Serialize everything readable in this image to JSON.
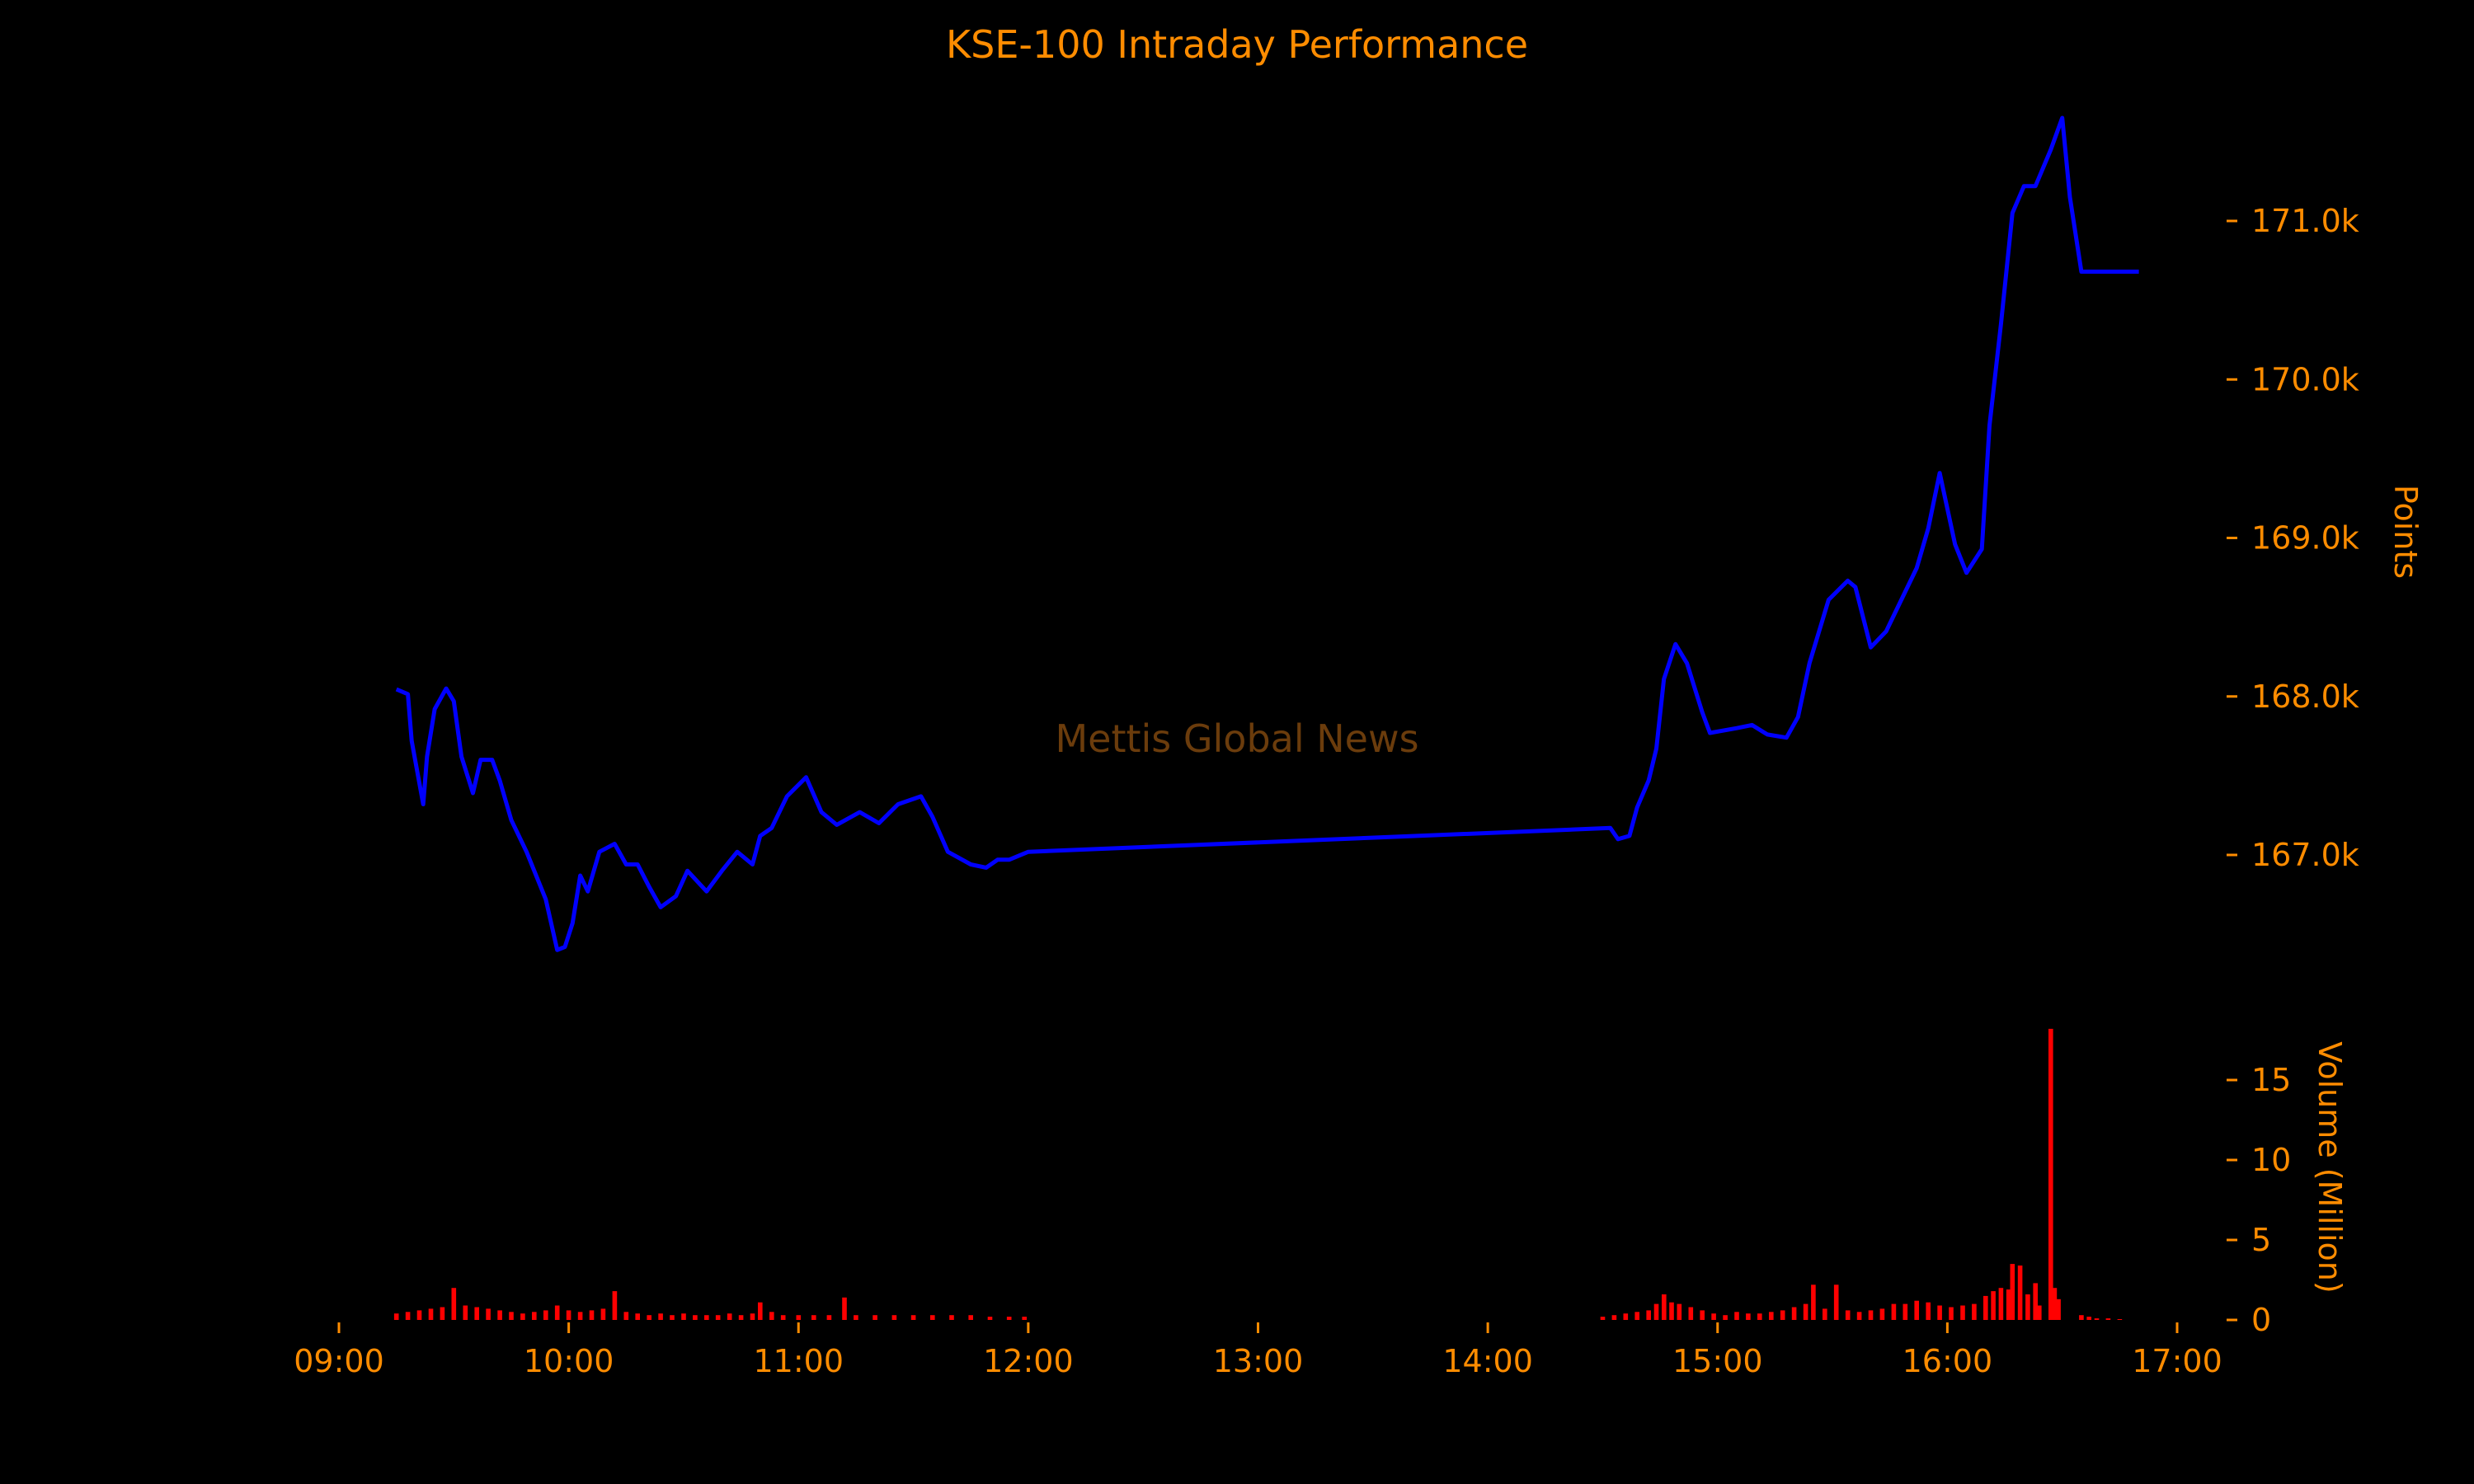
{
  "chart_data": {
    "type": "line",
    "title": "KSE-100 Intraday Performance",
    "watermark": "Mettis Global News",
    "xlabel": "",
    "x_ticks": [
      "09:00",
      "10:00",
      "11:00",
      "12:00",
      "13:00",
      "14:00",
      "15:00",
      "16:00",
      "17:00"
    ],
    "xlim": [
      "09:00",
      "17:00"
    ],
    "colors": {
      "background": "#000000",
      "text": "#ff8c00",
      "line": "#0000ff",
      "volume": "#ff0000",
      "watermark": "#6b3c0c"
    },
    "price": {
      "ylabel": "Points",
      "y_ticks": [
        {
          "value": 167000,
          "label": "167.0k"
        },
        {
          "value": 168000,
          "label": "168.0k"
        },
        {
          "value": 169000,
          "label": "169.0k"
        },
        {
          "value": 170000,
          "label": "170.0k"
        },
        {
          "value": 171000,
          "label": "171.0k"
        }
      ],
      "ylim": [
        166000,
        171900
      ],
      "series": [
        [
          "09:15",
          168045
        ],
        [
          "09:18",
          168015
        ],
        [
          "09:19",
          167720
        ],
        [
          "09:22",
          167320
        ],
        [
          "09:23",
          167620
        ],
        [
          "09:25",
          167920
        ],
        [
          "09:28",
          168050
        ],
        [
          "09:30",
          167970
        ],
        [
          "09:32",
          167620
        ],
        [
          "09:35",
          167390
        ],
        [
          "09:37",
          167600
        ],
        [
          "09:40",
          167600
        ],
        [
          "09:42",
          167470
        ],
        [
          "09:45",
          167220
        ],
        [
          "09:49",
          167020
        ],
        [
          "09:54",
          166720
        ],
        [
          "09:57",
          166400
        ],
        [
          "09:59",
          166420
        ],
        [
          "10:01",
          166570
        ],
        [
          "10:03",
          166870
        ],
        [
          "10:05",
          166770
        ],
        [
          "10:08",
          167020
        ],
        [
          "10:12",
          167070
        ],
        [
          "10:15",
          166940
        ],
        [
          "10:18",
          166940
        ],
        [
          "10:21",
          166800
        ],
        [
          "10:24",
          166670
        ],
        [
          "10:28",
          166740
        ],
        [
          "10:31",
          166900
        ],
        [
          "10:36",
          166770
        ],
        [
          "10:40",
          166900
        ],
        [
          "10:44",
          167020
        ],
        [
          "10:48",
          166940
        ],
        [
          "10:50",
          167120
        ],
        [
          "10:53",
          167170
        ],
        [
          "10:57",
          167370
        ],
        [
          "11:02",
          167490
        ],
        [
          "11:06",
          167270
        ],
        [
          "11:10",
          167190
        ],
        [
          "11:16",
          167270
        ],
        [
          "11:21",
          167200
        ],
        [
          "11:26",
          167320
        ],
        [
          "11:32",
          167370
        ],
        [
          "11:35",
          167240
        ],
        [
          "11:39",
          167020
        ],
        [
          "11:45",
          166940
        ],
        [
          "11:49",
          166920
        ],
        [
          "11:52",
          166970
        ],
        [
          "11:55",
          166970
        ],
        [
          "12:00",
          167020
        ],
        [
          "14:32",
          167170
        ],
        [
          "14:34",
          167100
        ],
        [
          "14:37",
          167120
        ],
        [
          "14:39",
          167300
        ],
        [
          "14:42",
          167470
        ],
        [
          "14:44",
          167670
        ],
        [
          "14:46",
          168110
        ],
        [
          "14:49",
          168330
        ],
        [
          "14:52",
          168210
        ],
        [
          "14:56",
          167900
        ],
        [
          "14:58",
          167770
        ],
        [
          "15:05",
          167800
        ],
        [
          "15:09",
          167820
        ],
        [
          "15:13",
          167760
        ],
        [
          "15:18",
          167740
        ],
        [
          "15:21",
          167870
        ],
        [
          "15:24",
          168210
        ],
        [
          "15:29",
          168610
        ],
        [
          "15:34",
          168730
        ],
        [
          "15:36",
          168690
        ],
        [
          "15:40",
          168310
        ],
        [
          "15:44",
          168410
        ],
        [
          "15:48",
          168610
        ],
        [
          "15:52",
          168810
        ],
        [
          "15:55",
          169060
        ],
        [
          "15:58",
          169410
        ],
        [
          "16:02",
          168960
        ],
        [
          "16:05",
          168780
        ],
        [
          "16:09",
          168930
        ],
        [
          "16:11",
          169710
        ],
        [
          "16:14",
          170350
        ],
        [
          "16:17",
          171050
        ],
        [
          "16:20",
          171220
        ],
        [
          "16:23",
          171220
        ],
        [
          "16:27",
          171450
        ],
        [
          "16:30",
          171650
        ],
        [
          "16:32",
          171150
        ],
        [
          "16:35",
          170680
        ],
        [
          "16:50",
          170680
        ]
      ]
    },
    "volume": {
      "ylabel": "Volume (Million)",
      "y_ticks": [
        {
          "value": 0,
          "label": "0"
        },
        {
          "value": 5,
          "label": "5"
        },
        {
          "value": 10,
          "label": "10"
        },
        {
          "value": 15,
          "label": "15"
        }
      ],
      "ylim": [
        0,
        18.5
      ],
      "series": [
        [
          "09:15",
          0.4
        ],
        [
          "09:18",
          0.5
        ],
        [
          "09:21",
          0.6
        ],
        [
          "09:24",
          0.7
        ],
        [
          "09:27",
          0.8
        ],
        [
          "09:30",
          2.0
        ],
        [
          "09:33",
          0.9
        ],
        [
          "09:36",
          0.8
        ],
        [
          "09:39",
          0.7
        ],
        [
          "09:42",
          0.6
        ],
        [
          "09:45",
          0.5
        ],
        [
          "09:48",
          0.4
        ],
        [
          "09:51",
          0.5
        ],
        [
          "09:54",
          0.6
        ],
        [
          "09:57",
          0.9
        ],
        [
          "10:00",
          0.6
        ],
        [
          "10:03",
          0.5
        ],
        [
          "10:06",
          0.6
        ],
        [
          "10:09",
          0.7
        ],
        [
          "10:12",
          1.8
        ],
        [
          "10:15",
          0.5
        ],
        [
          "10:18",
          0.4
        ],
        [
          "10:21",
          0.3
        ],
        [
          "10:24",
          0.4
        ],
        [
          "10:27",
          0.3
        ],
        [
          "10:30",
          0.4
        ],
        [
          "10:33",
          0.3
        ],
        [
          "10:36",
          0.3
        ],
        [
          "10:39",
          0.3
        ],
        [
          "10:42",
          0.4
        ],
        [
          "10:45",
          0.3
        ],
        [
          "10:48",
          0.4
        ],
        [
          "10:50",
          1.1
        ],
        [
          "10:53",
          0.5
        ],
        [
          "10:56",
          0.3
        ],
        [
          "11:00",
          0.3
        ],
        [
          "11:04",
          0.3
        ],
        [
          "11:08",
          0.3
        ],
        [
          "11:12",
          1.4
        ],
        [
          "11:15",
          0.3
        ],
        [
          "11:20",
          0.3
        ],
        [
          "11:25",
          0.3
        ],
        [
          "11:30",
          0.3
        ],
        [
          "11:35",
          0.3
        ],
        [
          "11:40",
          0.3
        ],
        [
          "11:45",
          0.3
        ],
        [
          "11:50",
          0.2
        ],
        [
          "11:55",
          0.2
        ],
        [
          "11:59",
          0.2
        ],
        [
          "14:30",
          0.2
        ],
        [
          "14:33",
          0.3
        ],
        [
          "14:36",
          0.4
        ],
        [
          "14:39",
          0.5
        ],
        [
          "14:42",
          0.6
        ],
        [
          "14:44",
          1.0
        ],
        [
          "14:46",
          1.6
        ],
        [
          "14:48",
          1.1
        ],
        [
          "14:50",
          1.0
        ],
        [
          "14:53",
          0.8
        ],
        [
          "14:56",
          0.6
        ],
        [
          "14:59",
          0.4
        ],
        [
          "15:02",
          0.3
        ],
        [
          "15:05",
          0.5
        ],
        [
          "15:08",
          0.4
        ],
        [
          "15:11",
          0.4
        ],
        [
          "15:14",
          0.5
        ],
        [
          "15:17",
          0.6
        ],
        [
          "15:20",
          0.8
        ],
        [
          "15:23",
          1.0
        ],
        [
          "15:25",
          2.2
        ],
        [
          "15:28",
          0.7
        ],
        [
          "15:31",
          2.2
        ],
        [
          "15:34",
          0.6
        ],
        [
          "15:37",
          0.5
        ],
        [
          "15:40",
          0.6
        ],
        [
          "15:43",
          0.7
        ],
        [
          "15:46",
          1.0
        ],
        [
          "15:49",
          1.0
        ],
        [
          "15:52",
          1.2
        ],
        [
          "15:55",
          1.1
        ],
        [
          "15:58",
          0.9
        ],
        [
          "16:01",
          0.8
        ],
        [
          "16:04",
          0.9
        ],
        [
          "16:07",
          1.0
        ],
        [
          "16:10",
          1.5
        ],
        [
          "16:12",
          1.8
        ],
        [
          "16:14",
          2.0
        ],
        [
          "16:16",
          1.9
        ],
        [
          "16:17",
          3.5
        ],
        [
          "16:19",
          3.4
        ],
        [
          "16:21",
          1.6
        ],
        [
          "16:23",
          2.3
        ],
        [
          "16:24",
          0.9
        ],
        [
          "16:27",
          18.2
        ],
        [
          "16:28",
          2.0
        ],
        [
          "16:29",
          1.3
        ],
        [
          "16:35",
          0.3
        ],
        [
          "16:37",
          0.2
        ],
        [
          "16:39",
          0.1
        ],
        [
          "16:42",
          0.1
        ],
        [
          "16:45",
          0.05
        ]
      ]
    }
  }
}
